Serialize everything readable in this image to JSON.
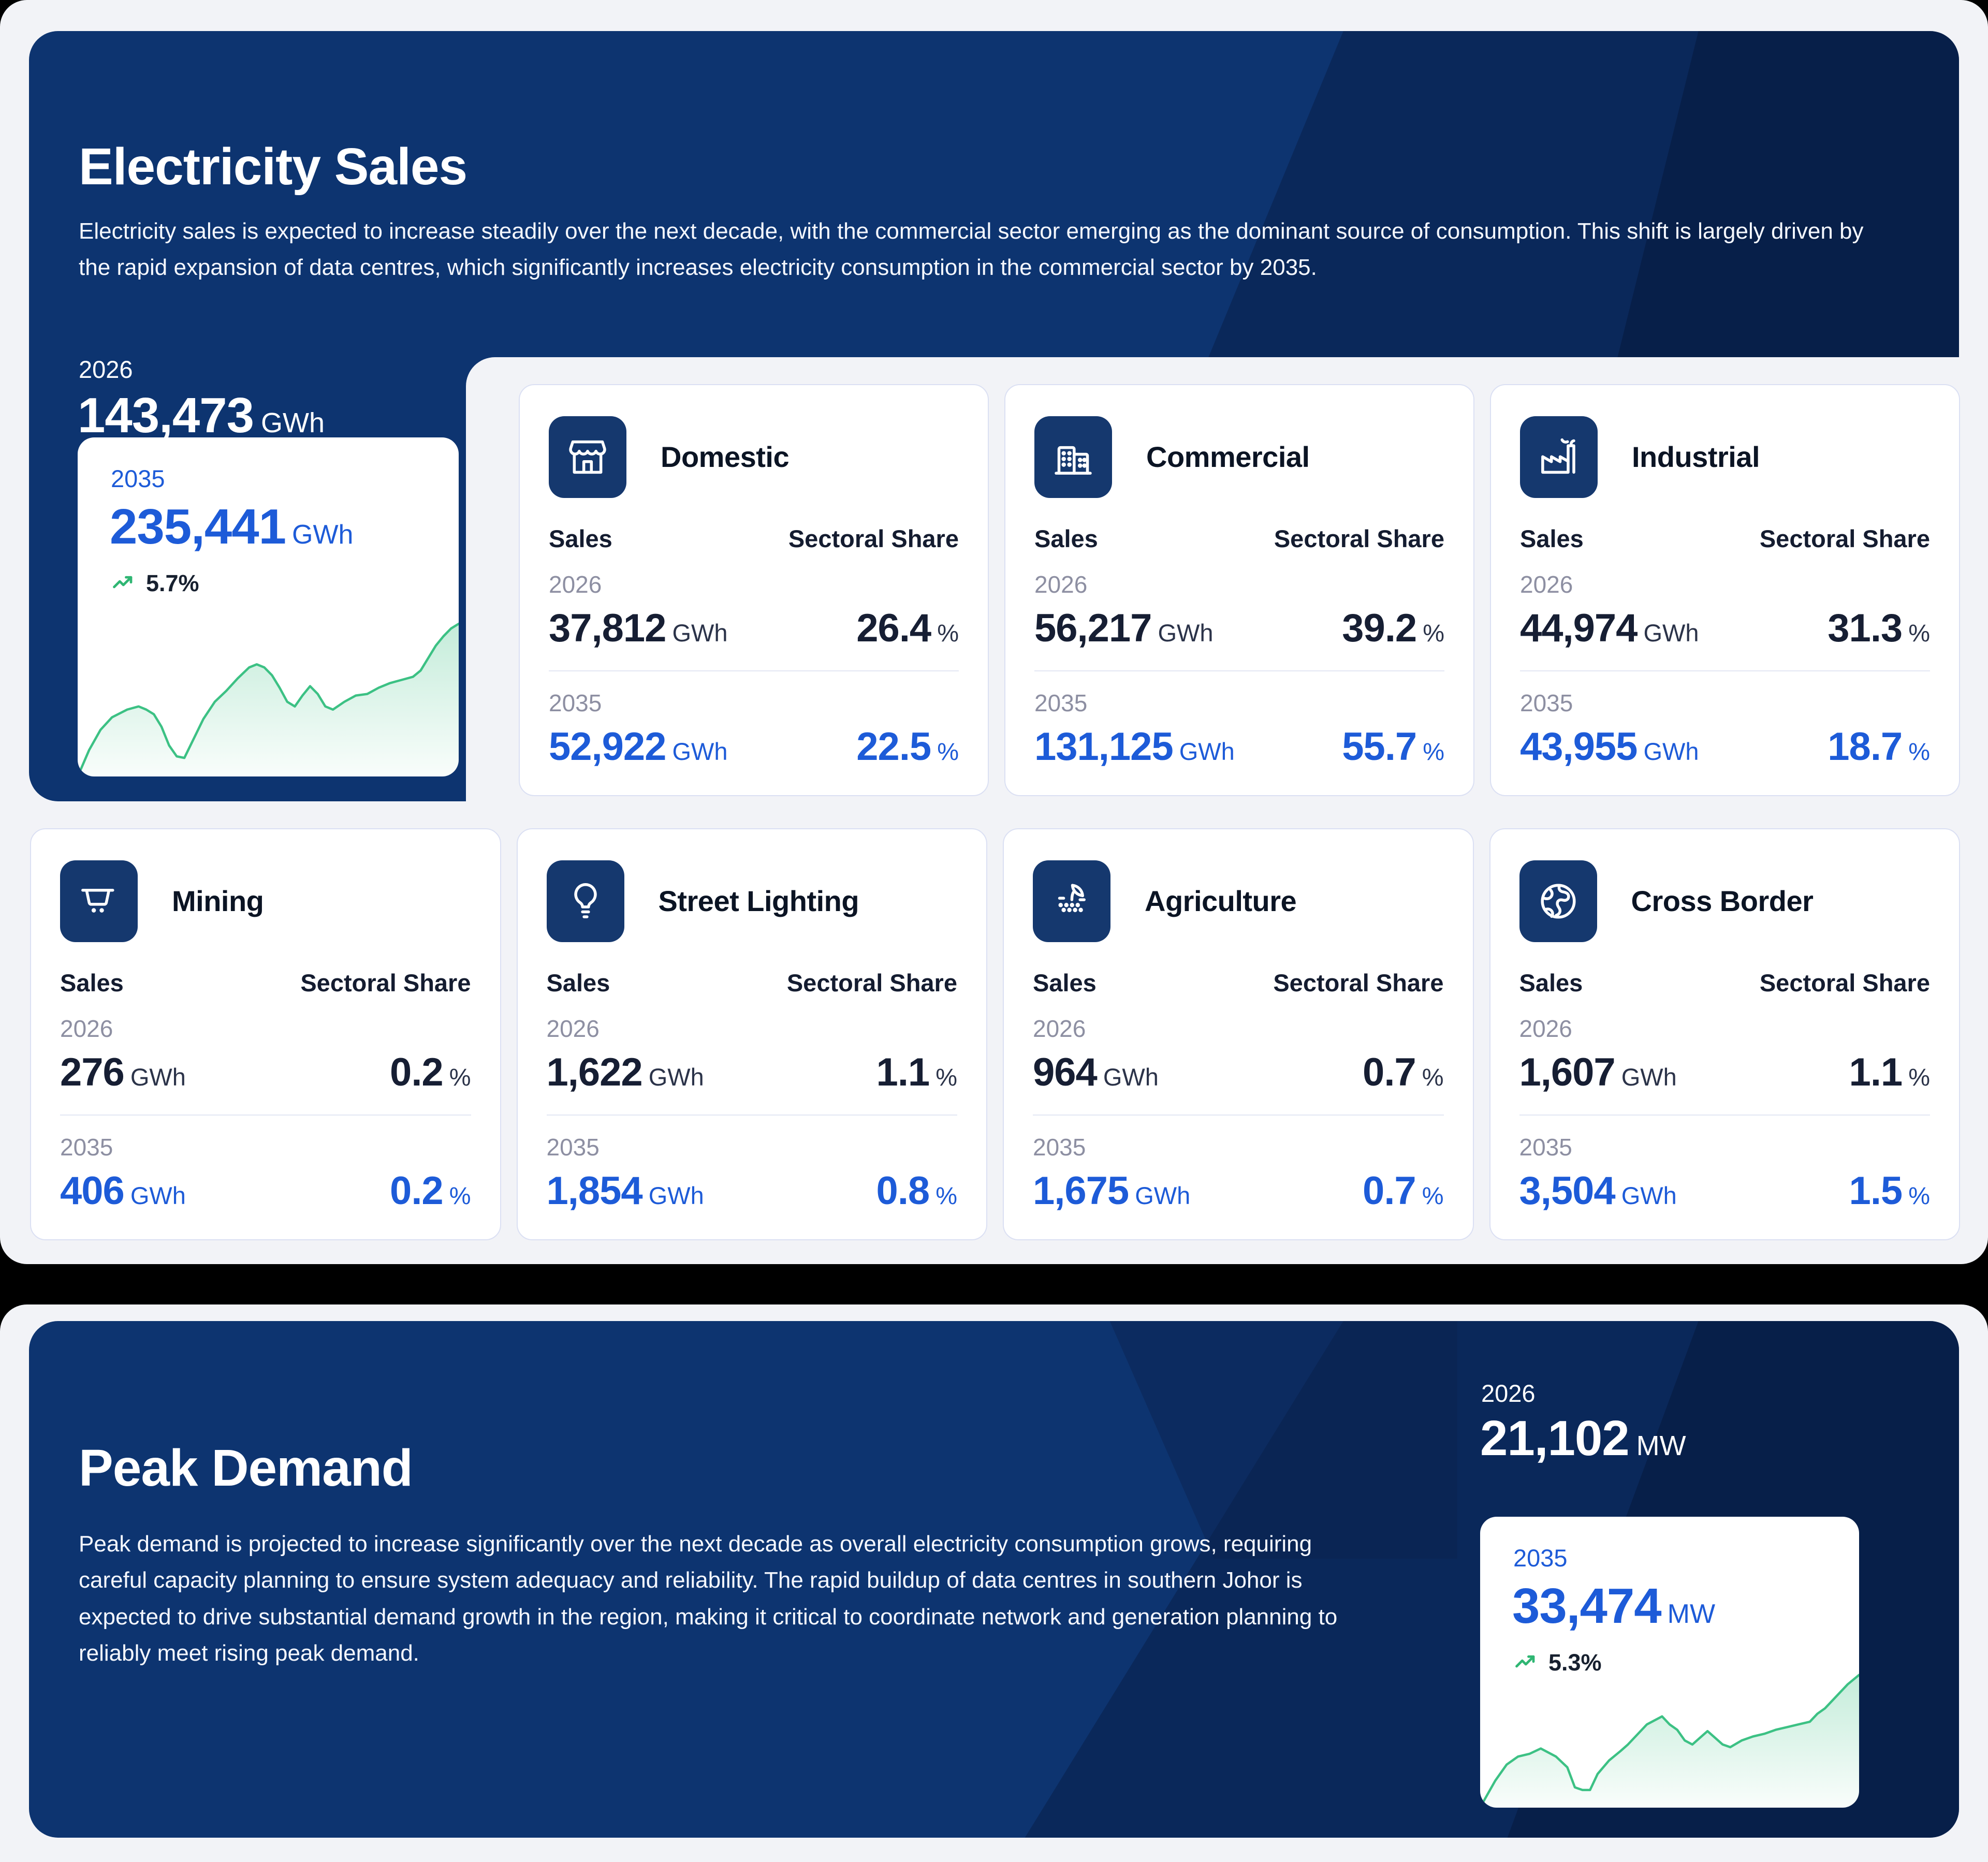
{
  "sales": {
    "title": "Electricity Sales",
    "description": "Electricity sales is expected to increase steadily over the next decade, with the commercial sector emerging as the dominant source of consumption. This shift is largely driven by the rapid expansion of data centres, which significantly increases electricity consumption in the commercial sector by 2035.",
    "summary": {
      "base_year": "2026",
      "base_value": "143,473",
      "base_unit": "GWh",
      "proj_year": "2035",
      "proj_value": "235,441",
      "proj_unit": "GWh",
      "growth_rate": "5.7%"
    },
    "columns": {
      "sales": "Sales",
      "share": "Sectoral Share"
    },
    "sectors": [
      {
        "name": "Domestic",
        "icon": "storefront-icon",
        "y2026": {
          "year": "2026",
          "sales": "37,812",
          "unit": "GWh",
          "share": "26.4",
          "share_unit": "%"
        },
        "y2035": {
          "year": "2035",
          "sales": "52,922",
          "unit": "GWh",
          "share": "22.5",
          "share_unit": "%"
        }
      },
      {
        "name": "Commercial",
        "icon": "office-building-icon",
        "y2026": {
          "year": "2026",
          "sales": "56,217",
          "unit": "GWh",
          "share": "39.2",
          "share_unit": "%"
        },
        "y2035": {
          "year": "2035",
          "sales": "131,125",
          "unit": "GWh",
          "share": "55.7",
          "share_unit": "%"
        }
      },
      {
        "name": "Industrial",
        "icon": "factory-icon",
        "y2026": {
          "year": "2026",
          "sales": "44,974",
          "unit": "GWh",
          "share": "31.3",
          "share_unit": "%"
        },
        "y2035": {
          "year": "2035",
          "sales": "43,955",
          "unit": "GWh",
          "share": "18.7",
          "share_unit": "%"
        }
      },
      {
        "name": "Mining",
        "icon": "mining-cart-icon",
        "y2026": {
          "year": "2026",
          "sales": "276",
          "unit": "GWh",
          "share": "0.2",
          "share_unit": "%"
        },
        "y2035": {
          "year": "2035",
          "sales": "406",
          "unit": "GWh",
          "share": "0.2",
          "share_unit": "%"
        }
      },
      {
        "name": "Street Lighting",
        "icon": "light-bulb-icon",
        "y2026": {
          "year": "2026",
          "sales": "1,622",
          "unit": "GWh",
          "share": "1.1",
          "share_unit": "%"
        },
        "y2035": {
          "year": "2035",
          "sales": "1,854",
          "unit": "GWh",
          "share": "0.8",
          "share_unit": "%"
        }
      },
      {
        "name": "Agriculture",
        "icon": "seedling-icon",
        "y2026": {
          "year": "2026",
          "sales": "964",
          "unit": "GWh",
          "share": "0.7",
          "share_unit": "%"
        },
        "y2035": {
          "year": "2035",
          "sales": "1,675",
          "unit": "GWh",
          "share": "0.7",
          "share_unit": "%"
        }
      },
      {
        "name": "Cross Border",
        "icon": "globe-icon",
        "y2026": {
          "year": "2026",
          "sales": "1,607",
          "unit": "GWh",
          "share": "1.1",
          "share_unit": "%"
        },
        "y2035": {
          "year": "2035",
          "sales": "3,504",
          "unit": "GWh",
          "share": "1.5",
          "share_unit": "%"
        }
      }
    ]
  },
  "peak": {
    "title": "Peak Demand",
    "description": "Peak demand is projected to increase significantly over the next decade as overall electricity consumption grows, requiring careful capacity planning to ensure system adequacy and reliability. The rapid buildup of data centres in southern Johor is expected to drive substantial demand growth in the region, making it critical to coordinate network and generation planning to reliably meet rising peak demand.",
    "summary": {
      "base_year": "2026",
      "base_value": "21,102",
      "base_unit": "MW",
      "proj_year": "2035",
      "proj_value": "33,474",
      "proj_unit": "MW",
      "growth_rate": "5.3%"
    }
  },
  "colors": {
    "page_bg": "#000000",
    "section_bg": "#f2f3f7",
    "panel_navy": "#0d3470",
    "tile_navy": "#15386e",
    "accent_blue": "#1d5bd8",
    "value_dark": "#161e33",
    "label_gray": "#8d8fa2",
    "green_line": "#3cc184",
    "green_icon": "#2fb673",
    "card_border": "#dbe0f3"
  },
  "chart_data": [
    {
      "name": "sales-projection-sparkline",
      "type": "area",
      "title": "Electricity sales trend 2026-2035 (unlabeled sparkline)",
      "ylim": [
        0,
        100
      ],
      "grid": false,
      "legend": false,
      "points": [
        [
          0,
          0
        ],
        [
          3,
          17
        ],
        [
          6,
          30
        ],
        [
          9,
          38
        ],
        [
          13,
          43
        ],
        [
          16,
          45
        ],
        [
          18,
          43
        ],
        [
          20,
          40
        ],
        [
          22,
          32
        ],
        [
          24,
          20
        ],
        [
          26,
          13
        ],
        [
          28,
          12
        ],
        [
          30,
          22
        ],
        [
          33,
          37
        ],
        [
          36,
          48
        ],
        [
          39,
          55
        ],
        [
          42,
          63
        ],
        [
          45,
          70
        ],
        [
          47,
          72
        ],
        [
          49,
          70
        ],
        [
          51,
          65
        ],
        [
          53,
          57
        ],
        [
          55,
          48
        ],
        [
          57,
          45
        ],
        [
          59,
          52
        ],
        [
          61,
          58
        ],
        [
          63,
          53
        ],
        [
          65,
          45
        ],
        [
          67,
          43
        ],
        [
          70,
          48
        ],
        [
          73,
          52
        ],
        [
          76,
          53
        ],
        [
          79,
          57
        ],
        [
          82,
          60
        ],
        [
          85,
          62
        ],
        [
          88,
          64
        ],
        [
          90,
          68
        ],
        [
          92,
          76
        ],
        [
          94,
          84
        ],
        [
          96,
          90
        ],
        [
          98,
          95
        ],
        [
          100,
          98
        ]
      ]
    },
    {
      "name": "peak-demand-sparkline",
      "type": "area",
      "title": "Peak demand trend 2026-2035 (unlabeled sparkline)",
      "ylim": [
        0,
        100
      ],
      "grid": false,
      "legend": false,
      "points": [
        [
          0,
          0
        ],
        [
          4,
          20
        ],
        [
          7,
          32
        ],
        [
          10,
          38
        ],
        [
          13,
          40
        ],
        [
          16,
          44
        ],
        [
          18,
          41
        ],
        [
          20,
          38
        ],
        [
          23,
          30
        ],
        [
          25,
          15
        ],
        [
          27,
          13
        ],
        [
          29,
          13
        ],
        [
          31,
          25
        ],
        [
          34,
          35
        ],
        [
          37,
          42
        ],
        [
          39,
          47
        ],
        [
          42,
          56
        ],
        [
          44,
          62
        ],
        [
          46,
          65
        ],
        [
          48,
          68
        ],
        [
          50,
          62
        ],
        [
          52,
          58
        ],
        [
          54,
          50
        ],
        [
          56,
          47
        ],
        [
          58,
          52
        ],
        [
          60,
          57
        ],
        [
          62,
          52
        ],
        [
          64,
          47
        ],
        [
          66,
          45
        ],
        [
          69,
          50
        ],
        [
          72,
          53
        ],
        [
          75,
          55
        ],
        [
          78,
          58
        ],
        [
          81,
          60
        ],
        [
          84,
          62
        ],
        [
          87,
          64
        ],
        [
          89,
          70
        ],
        [
          91,
          74
        ],
        [
          93,
          80
        ],
        [
          95,
          86
        ],
        [
          97,
          92
        ],
        [
          100,
          99
        ]
      ]
    }
  ]
}
